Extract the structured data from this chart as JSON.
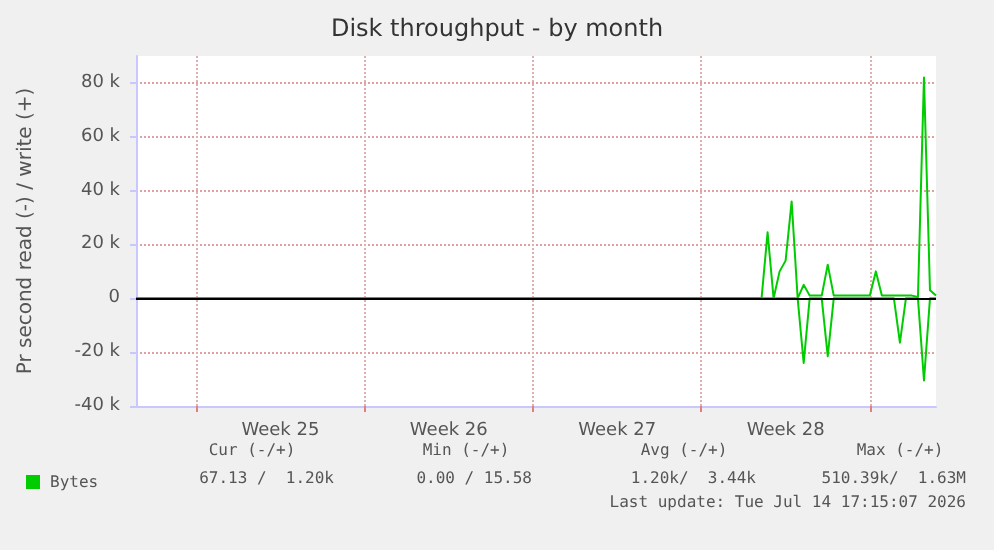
{
  "chart_data": {
    "type": "line",
    "title": "Disk throughput - by month",
    "ylabel": "Pr second read (-) / write (+)",
    "categories": [
      null,
      null,
      null,
      null,
      null,
      null,
      null,
      null,
      null,
      null,
      null,
      null,
      null,
      null,
      null,
      null,
      null,
      null,
      null,
      null,
      null,
      null,
      null,
      null,
      "Week 25",
      null,
      null,
      null,
      null,
      null,
      null,
      null,
      null,
      null,
      null,
      null,
      null,
      null,
      null,
      null,
      null,
      null,
      null,
      null,
      null,
      null,
      null,
      null,
      null,
      null,
      null,
      null,
      "Week 26",
      null,
      null,
      null,
      null,
      null,
      null,
      null,
      null,
      null,
      null,
      null,
      null,
      null,
      null,
      null,
      null,
      null,
      null,
      null,
      null,
      null,
      null,
      null,
      null,
      null,
      null,
      null,
      "Week 27",
      null,
      null,
      null,
      null,
      null,
      null,
      null,
      null,
      null,
      null,
      null,
      null,
      null,
      null,
      null,
      null,
      null,
      null,
      null,
      null,
      null,
      null,
      null,
      null,
      null,
      null,
      null,
      "Week 28",
      null,
      null,
      null,
      null,
      null,
      null,
      null,
      null,
      null,
      null,
      null,
      null,
      null,
      null,
      null,
      null,
      null,
      null,
      null,
      null,
      null,
      null,
      null,
      null,
      null
    ],
    "ylim": [
      -40000,
      90000
    ],
    "yticks": [
      {
        "value": -40000,
        "label": "-40 k"
      },
      {
        "value": -20000,
        "label": "-20 k"
      },
      {
        "value": 0,
        "label": "0"
      },
      {
        "value": 20000,
        "label": "20 k"
      },
      {
        "value": 40000,
        "label": "40 k"
      },
      {
        "value": 60000,
        "label": "60 k"
      },
      {
        "value": 80000,
        "label": "80 k"
      }
    ],
    "grid": true,
    "legend": "bottom left",
    "marker": "none",
    "line_style": "solid",
    "series": [
      {
        "name": "Bytes",
        "color": "#00cc00",
        "values": [
          0,
          0,
          0,
          0,
          0,
          0,
          0,
          0,
          0,
          0,
          0,
          0,
          0,
          0,
          0,
          0,
          0,
          0,
          0,
          0,
          0,
          0,
          0,
          0,
          0,
          0,
          0,
          0,
          0,
          0,
          0,
          0,
          0,
          0,
          0,
          0,
          0,
          0,
          0,
          0,
          0,
          0,
          0,
          0,
          0,
          0,
          0,
          0,
          0,
          0,
          0,
          0,
          0,
          0,
          0,
          0,
          0,
          0,
          0,
          0,
          0,
          0,
          0,
          0,
          0,
          0,
          0,
          0,
          0,
          0,
          0,
          0,
          0,
          0,
          0,
          0,
          0,
          0,
          0,
          0,
          0,
          0,
          0,
          0,
          0,
          0,
          0,
          0,
          0,
          0,
          0,
          0,
          0,
          0,
          0,
          0,
          0,
          0,
          0,
          0,
          0,
          0,
          0,
          0,
          0,
          24500,
          0,
          10000,
          14000,
          36000,
          0,
          5000,
          1000,
          1000,
          1000,
          12500,
          1000,
          1000,
          1000,
          1000,
          1000,
          1000,
          1000,
          10000,
          1000,
          1000,
          1000,
          1000,
          1000,
          1000,
          500,
          82000,
          3000,
          1000
        ]
      },
      {
        "color": "#00cc00",
        "values": [
          0,
          0,
          0,
          0,
          0,
          0,
          0,
          0,
          0,
          0,
          0,
          0,
          0,
          0,
          0,
          0,
          0,
          0,
          0,
          0,
          0,
          0,
          0,
          0,
          0,
          0,
          0,
          0,
          0,
          0,
          0,
          0,
          0,
          0,
          0,
          0,
          0,
          0,
          0,
          0,
          0,
          0,
          0,
          0,
          0,
          0,
          0,
          0,
          0,
          0,
          0,
          0,
          0,
          0,
          0,
          0,
          0,
          0,
          0,
          0,
          0,
          0,
          0,
          0,
          0,
          0,
          0,
          0,
          0,
          0,
          0,
          0,
          0,
          0,
          0,
          0,
          0,
          0,
          0,
          0,
          0,
          0,
          0,
          0,
          0,
          0,
          0,
          0,
          0,
          0,
          0,
          0,
          0,
          0,
          0,
          0,
          0,
          0,
          0,
          0,
          0,
          0,
          0,
          0,
          0,
          0,
          0,
          0,
          0,
          0,
          0,
          -24000,
          0,
          0,
          0,
          -21500,
          0,
          0,
          0,
          0,
          0,
          0,
          0,
          0,
          0,
          0,
          0,
          -16500,
          0,
          0,
          0,
          -30500,
          0,
          0
        ]
      }
    ],
    "ref_lines": [
      {
        "axis": "y",
        "value": 0,
        "color": "#000000",
        "line_style": "solid"
      }
    ],
    "annotations": [
      "Cur (-/+)",
      "Min (-/+)",
      "Avg (-/+)",
      "Max (-/+)",
      "67.13 /  1.20k",
      "0.00 / 15.58",
      "1.20k/  3.44k",
      "510.39k/  1.63M",
      "Last update: Tue Jul 14 17:15:07 2026"
    ]
  }
}
